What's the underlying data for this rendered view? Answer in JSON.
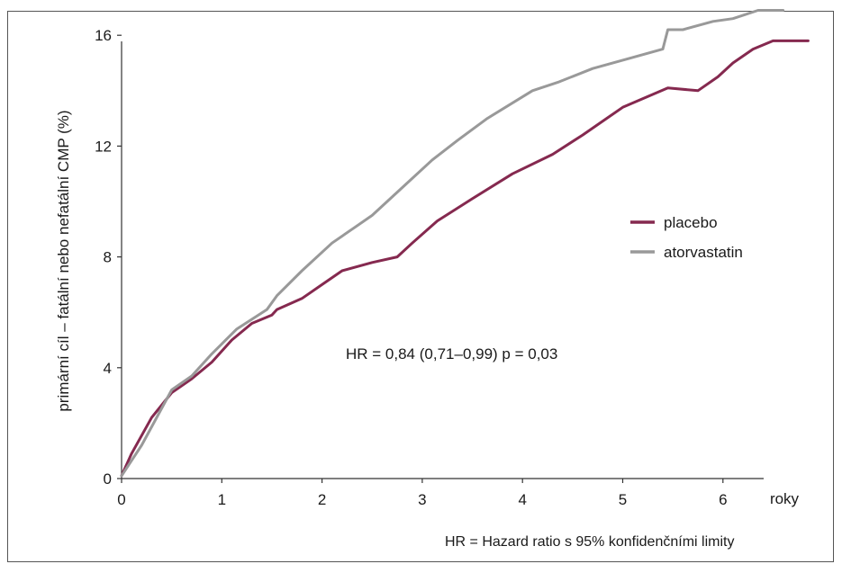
{
  "chart_data": {
    "type": "line",
    "xlabel": "roky",
    "ylabel": "primární cíl – fatální nebo nefatální CMP (%)",
    "xlim": [
      0,
      6.5
    ],
    "ylim": [
      0,
      17
    ],
    "xticks": [
      0,
      1,
      2,
      3,
      4,
      5,
      6
    ],
    "yticks": [
      0,
      4,
      8,
      12,
      16
    ],
    "annotation": "HR = 0,84 (0,71–0,99) p = 0,03",
    "footnote": "HR = Hazard ratio s 95% konfidenčními limity",
    "legend_position": "right",
    "series": [
      {
        "name": "placebo",
        "color": "#85294f",
        "x": [
          0,
          0.1,
          0.3,
          0.5,
          0.7,
          0.9,
          1.1,
          1.3,
          1.5,
          1.55,
          1.8,
          2.0,
          2.2,
          2.5,
          2.75,
          2.9,
          3.15,
          3.5,
          3.9,
          4.3,
          4.6,
          5.0,
          5.45,
          5.75,
          5.95,
          6.1,
          6.3,
          6.5,
          6.85
        ],
        "y": [
          0.1,
          0.9,
          2.2,
          3.1,
          3.6,
          4.2,
          5.0,
          5.6,
          5.9,
          6.1,
          6.5,
          7.0,
          7.5,
          7.8,
          8.0,
          8.5,
          9.3,
          10.1,
          11.0,
          11.7,
          12.4,
          13.4,
          14.1,
          14.0,
          14.5,
          15.0,
          15.5,
          15.8,
          15.8
        ]
      },
      {
        "name": "atorvastatin",
        "color": "#999999",
        "x": [
          0,
          0.2,
          0.5,
          0.7,
          0.9,
          1.15,
          1.45,
          1.55,
          1.8,
          2.1,
          2.3,
          2.5,
          2.8,
          3.1,
          3.35,
          3.65,
          4.1,
          4.35,
          4.7,
          5.0,
          5.4,
          5.45,
          5.6,
          5.9,
          6.1,
          6.35,
          6.6
        ],
        "y": [
          0.1,
          1.2,
          3.2,
          3.7,
          4.5,
          5.4,
          6.1,
          6.6,
          7.5,
          8.5,
          9.0,
          9.5,
          10.5,
          11.5,
          12.2,
          13.0,
          14.0,
          14.3,
          14.8,
          15.1,
          15.5,
          16.2,
          16.2,
          16.5,
          16.6,
          16.9,
          16.9
        ]
      }
    ]
  }
}
